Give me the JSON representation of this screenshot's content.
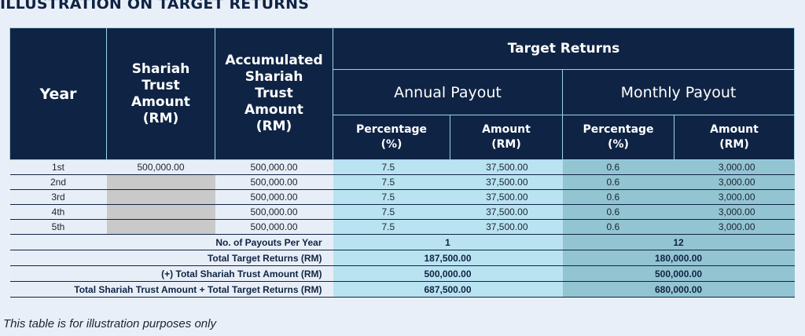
{
  "title": "ILLUSTRATION ON TARGET RETURNS",
  "headers": {
    "year": "Year",
    "trust_amount": [
      "Shariah",
      "Trust",
      "Amount",
      "(RM)"
    ],
    "accumulated": [
      "Accumulated",
      "Shariah",
      "Trust",
      "Amount",
      "(RM)"
    ],
    "target_returns": "Target Returns",
    "annual_payout": "Annual Payout",
    "monthly_payout": "Monthly Payout",
    "percentage": [
      "Percentage",
      "(%)"
    ],
    "amount": [
      "Amount",
      "(RM)"
    ]
  },
  "rows": [
    {
      "year": "1st",
      "trust": "500,000.00",
      "acc": "500,000.00",
      "ann_pct": "7.5",
      "ann_amt": "37,500.00",
      "mon_pct": "0.6",
      "mon_amt": "3,000.00"
    },
    {
      "year": "2nd",
      "trust": "",
      "acc": "500,000.00",
      "ann_pct": "7.5",
      "ann_amt": "37,500.00",
      "mon_pct": "0.6",
      "mon_amt": "3,000.00"
    },
    {
      "year": "3rd",
      "trust": "",
      "acc": "500,000.00",
      "ann_pct": "7.5",
      "ann_amt": "37,500.00",
      "mon_pct": "0.6",
      "mon_amt": "3,000.00"
    },
    {
      "year": "4th",
      "trust": "",
      "acc": "500,000.00",
      "ann_pct": "7.5",
      "ann_amt": "37,500.00",
      "mon_pct": "0.6",
      "mon_amt": "3,000.00"
    },
    {
      "year": "5th",
      "trust": "",
      "acc": "500,000.00",
      "ann_pct": "7.5",
      "ann_amt": "37,500.00",
      "mon_pct": "0.6",
      "mon_amt": "3,000.00"
    }
  ],
  "summary": [
    {
      "label": "No. of Payouts Per Year",
      "annual": "1",
      "monthly": "12"
    },
    {
      "label": "Total Target Returns (RM)",
      "annual": "187,500.00",
      "monthly": "180,000.00"
    },
    {
      "label": "(+) Total Shariah Trust Amount (RM)",
      "annual": "500,000.00",
      "monthly": "500,000.00"
    },
    {
      "label": "Total Shariah Trust Amount + Total Target Returns (RM)",
      "annual": "687,500.00",
      "monthly": "680,000.00"
    }
  ],
  "footnote": "This table is for illustration purposes only",
  "colors": {
    "header_bg": "#0f2444",
    "annual_bg": "#b9e3f1",
    "monthly_bg": "#93c4d2",
    "blank_cell": "#c9c9c9",
    "page_bg": "#e9eff8"
  }
}
